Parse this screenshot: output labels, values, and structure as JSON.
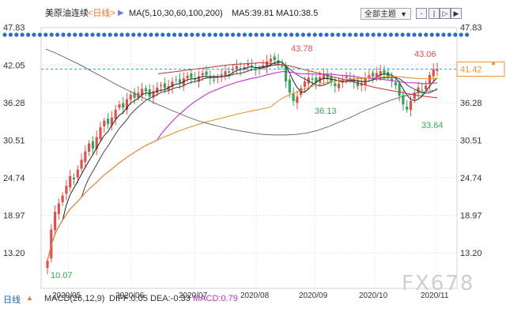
{
  "header": {
    "symbol": "美原油连续",
    "period": "<日线>",
    "arrow": "▶",
    "ma_label": "MA(5,10,30,60,100,200)",
    "ma5": "MA5:39.81",
    "ma10": "MA10:38.5",
    "theme_button": "全部主题",
    "theme_caret": "▼",
    "controls": [
      "-",
      "|",
      "▷",
      "▶"
    ]
  },
  "bottom": {
    "period": "日线",
    "caret": "▲",
    "macd": "MACD(26,12,9)",
    "dif": "DIFF:0.05",
    "dea": "DEA:-0.33",
    "macd_value": "MACD:0.79"
  },
  "watermark": "FX678",
  "colors": {
    "up": "#d9534f",
    "down": "#3aa35a",
    "ma_short": "#222222",
    "ma_mid": "#c030d0",
    "ma_long": "#e8952e",
    "ma_200": "#707070",
    "ma_red": "#c03030",
    "dots": "#2a6fc4",
    "price_line": "#2aa6cf"
  },
  "chart_data": {
    "type": "candlestick",
    "yticks": [
      13.2,
      18.97,
      24.74,
      30.51,
      36.28,
      42.05,
      47.83
    ],
    "ytick_labels": [
      "13.20",
      "18.97",
      "24.74",
      "30.51",
      "36.28",
      "42.05",
      "47.83"
    ],
    "ylim": [
      10.07,
      47.83
    ],
    "x_ticks": [
      "2020/05",
      "2020/06",
      "2020/07",
      "2020/08",
      "2020/09",
      "2020/10",
      "2020/11"
    ],
    "last_price": "41.42",
    "annotations": [
      {
        "label": "10.07",
        "value": 10.07,
        "kind": "low"
      },
      {
        "label": "43.78",
        "value": 43.78,
        "kind": "high"
      },
      {
        "label": "36.13",
        "value": 36.13,
        "kind": "low"
      },
      {
        "label": "43.06",
        "value": 43.06,
        "kind": "high"
      },
      {
        "label": "33.64",
        "value": 33.64,
        "kind": "low"
      }
    ],
    "closes": [
      12.0,
      16.8,
      19.5,
      20.8,
      22.0,
      23.5,
      25.0,
      24.5,
      26.0,
      27.5,
      28.8,
      30.0,
      29.2,
      31.0,
      32.5,
      33.5,
      33.0,
      34.0,
      35.2,
      36.0,
      35.5,
      36.8,
      37.5,
      37.0,
      37.8,
      38.4,
      38.0,
      37.2,
      38.0,
      38.6,
      39.0,
      38.5,
      38.8,
      39.5,
      39.8,
      39.3,
      40.0,
      40.4,
      40.1,
      39.8,
      40.3,
      40.8,
      40.5,
      40.0,
      39.8,
      40.2,
      40.6,
      41.1,
      40.9,
      41.5,
      41.9,
      41.3,
      41.7,
      42.2,
      41.8,
      41.2,
      41.6,
      42.0,
      42.6,
      43.0,
      42.8,
      42.3,
      41.8,
      39.5,
      37.8,
      36.5,
      37.2,
      38.5,
      39.5,
      40.1,
      39.8,
      39.3,
      40.2,
      40.5,
      40.0,
      39.4,
      38.8,
      39.2,
      39.8,
      40.3,
      39.9,
      39.4,
      38.8,
      39.3,
      40.0,
      40.5,
      40.3,
      40.8,
      41.1,
      40.7,
      40.2,
      39.6,
      38.9,
      37.3,
      36.0,
      35.2,
      36.5,
      37.8,
      38.6,
      38.2,
      38.9,
      40.5,
      41.4,
      41.42
    ]
  }
}
